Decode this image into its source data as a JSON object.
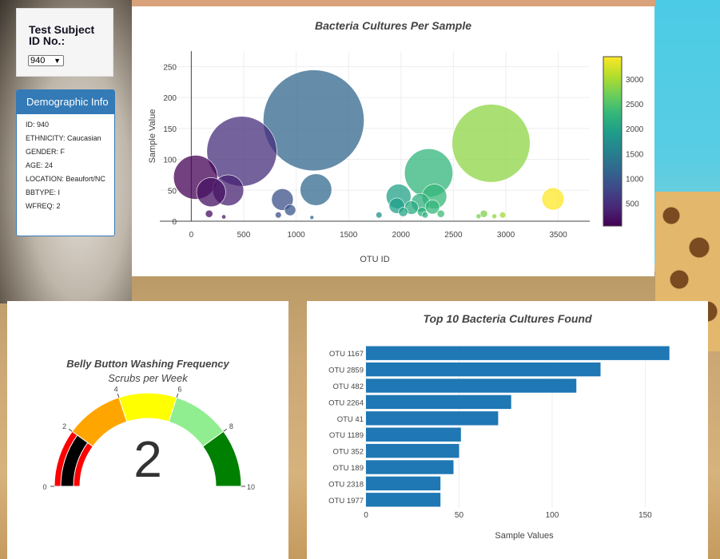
{
  "subject_panel": {
    "title": "Test Subject ID No.:",
    "selected": "940"
  },
  "demographic": {
    "header": "Demographic Info",
    "lines": [
      "ID: 940",
      "ETHNICITY: Caucasian",
      "GENDER: F",
      "AGE: 24",
      "LOCATION: Beaufort/NC",
      "BBTYPE: I",
      "WFREQ: 2"
    ]
  },
  "chart_data": [
    {
      "type": "scatter",
      "title": "Bacteria Cultures Per Sample",
      "xlabel": "OTU ID",
      "ylabel": "Sample Value",
      "xlim": [
        -300,
        3800
      ],
      "ylim": [
        0,
        275
      ],
      "xticks": [
        0,
        500,
        1000,
        1500,
        2000,
        2500,
        3000,
        3500
      ],
      "yticks": [
        0,
        50,
        100,
        150,
        200,
        250
      ],
      "colorscale": "Viridis",
      "colorbar_ticks": [
        500,
        1000,
        1500,
        2000,
        2500,
        3000
      ],
      "colorbar_range": [
        41,
        3450
      ],
      "points": [
        {
          "x": 41,
          "y": 71
        },
        {
          "x": 189,
          "y": 47
        },
        {
          "x": 352,
          "y": 50
        },
        {
          "x": 482,
          "y": 113
        },
        {
          "x": 869,
          "y": 35
        },
        {
          "x": 943,
          "y": 18
        },
        {
          "x": 1167,
          "y": 163
        },
        {
          "x": 1189,
          "y": 51
        },
        {
          "x": 1977,
          "y": 40
        },
        {
          "x": 1960,
          "y": 25
        },
        {
          "x": 2021,
          "y": 15
        },
        {
          "x": 2100,
          "y": 22
        },
        {
          "x": 2186,
          "y": 30
        },
        {
          "x": 2200,
          "y": 15
        },
        {
          "x": 2230,
          "y": 10
        },
        {
          "x": 2264,
          "y": 78
        },
        {
          "x": 2318,
          "y": 40
        },
        {
          "x": 2300,
          "y": 23
        },
        {
          "x": 2859,
          "y": 126
        },
        {
          "x": 3450,
          "y": 36
        },
        {
          "x": 170,
          "y": 12
        },
        {
          "x": 310,
          "y": 7
        },
        {
          "x": 830,
          "y": 10
        },
        {
          "x": 1150,
          "y": 6
        },
        {
          "x": 1790,
          "y": 10
        },
        {
          "x": 2380,
          "y": 12
        },
        {
          "x": 2790,
          "y": 12
        },
        {
          "x": 2970,
          "y": 10
        },
        {
          "x": 2740,
          "y": 8
        },
        {
          "x": 2890,
          "y": 8
        }
      ]
    },
    {
      "type": "bar",
      "title": "Top 10 Bacteria Cultures Found",
      "xlabel": "Sample Values",
      "xlim": [
        0,
        170
      ],
      "xticks": [
        0,
        50,
        100,
        150
      ],
      "categories": [
        "OTU 1167",
        "OTU 2859",
        "OTU 482",
        "OTU 2264",
        "OTU 41",
        "OTU 1189",
        "OTU 352",
        "OTU 189",
        "OTU 2318",
        "OTU 1977"
      ],
      "values": [
        163,
        126,
        113,
        78,
        71,
        51,
        50,
        47,
        40,
        40
      ],
      "color": "#1f77b4"
    }
  ],
  "gauge": {
    "title": "Belly Button Washing Frequency",
    "subtitle": "Scrubs per Week",
    "value": "2",
    "value_num": 2,
    "range": [
      0,
      10
    ],
    "tick_labels": [
      "0",
      "2",
      "4",
      "6",
      "8",
      "10"
    ],
    "bands": [
      {
        "from": 0,
        "to": 2,
        "color": "#ff0000"
      },
      {
        "from": 2,
        "to": 4,
        "color": "#ffa500"
      },
      {
        "from": 4,
        "to": 6,
        "color": "#ffff00"
      },
      {
        "from": 6,
        "to": 8,
        "color": "#90ee90"
      },
      {
        "from": 8,
        "to": 10,
        "color": "#008000"
      }
    ],
    "bar_color": "#000000"
  }
}
